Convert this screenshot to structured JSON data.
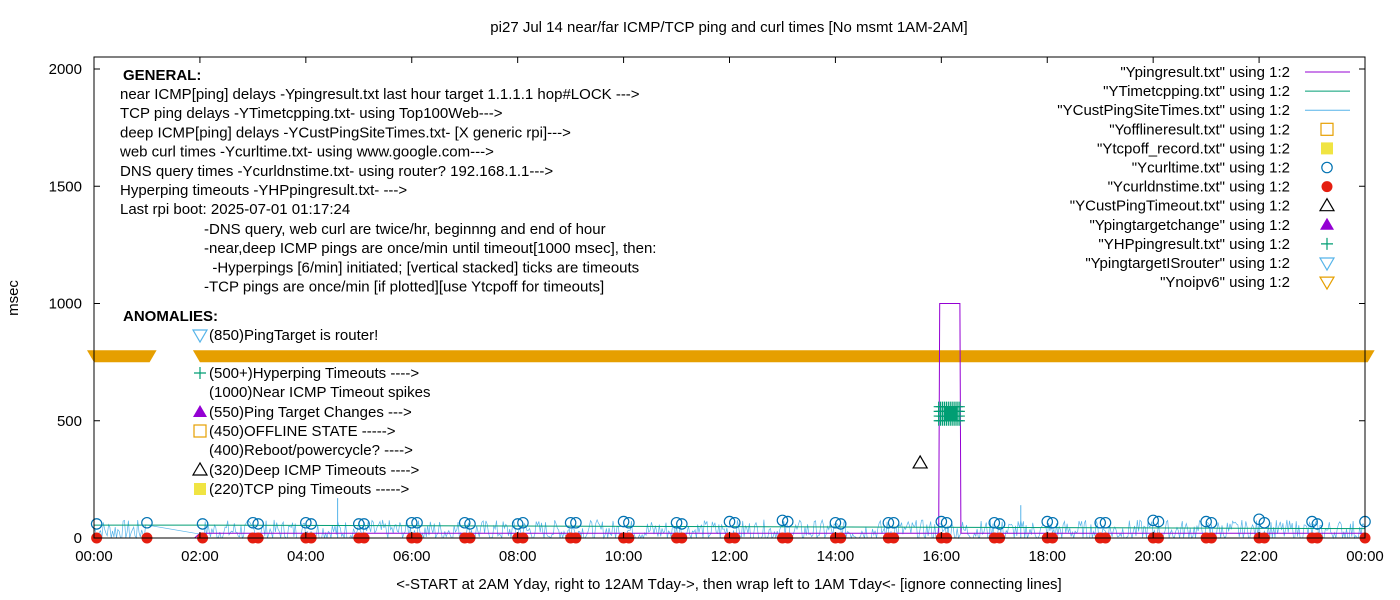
{
  "chart_data": {
    "type": "line",
    "title": "pi27 Jul 14  near/far ICMP/TCP ping and curl times [No msmt 1AM-2AM]",
    "xlabel": "<-START at 2AM Yday, right to 12AM Tday->, then wrap left to 1AM Tday<- [ignore connecting lines]",
    "ylabel": "msec",
    "xlim": [
      0,
      24
    ],
    "ylim": [
      0,
      2000
    ],
    "x_ticks": [
      "00:00",
      "02:00",
      "04:00",
      "06:00",
      "08:00",
      "10:00",
      "12:00",
      "14:00",
      "16:00",
      "18:00",
      "20:00",
      "22:00",
      "00:00"
    ],
    "y_ticks": [
      0,
      500,
      1000,
      1500,
      2000
    ],
    "grid": false,
    "legend_placement": "top-right",
    "legend": [
      {
        "label": "\"Ypingresult.txt\" using 1:2",
        "kind": "line",
        "color": "#9400d3"
      },
      {
        "label": "\"YTimetcpping.txt\" using 1:2",
        "kind": "line",
        "color": "#009e73"
      },
      {
        "label": "\"YCustPingSiteTimes.txt\" using 1:2",
        "kind": "line",
        "color": "#56b4e9"
      },
      {
        "label": "\"Yofflineresult.txt\" using 1:2",
        "kind": "open-square",
        "color": "#e69f00"
      },
      {
        "label": "\"Ytcpoff_record.txt\" using 1:2",
        "kind": "filled-square",
        "color": "#f0e442"
      },
      {
        "label": "\"Ycurltime.txt\" using 1:2",
        "kind": "open-circle",
        "color": "#0072b2"
      },
      {
        "label": "\"Ycurldnstime.txt\" using 1:2",
        "kind": "filled-circle",
        "color": "#e51e10"
      },
      {
        "label": "\"YCustPingTimeout.txt\" using 1:2",
        "kind": "open-triangle",
        "color": "#000000"
      },
      {
        "label": "\"Ypingtargetchange\" using 1:2",
        "kind": "filled-triangle",
        "color": "#9400d3"
      },
      {
        "label": "\"YHPpingresult.txt\" using 1:2",
        "kind": "plus",
        "color": "#009e73"
      },
      {
        "label": "\"YpingtargetISrouter\" using 1:2",
        "kind": "open-down-triangle",
        "color": "#56b4e9"
      },
      {
        "label": "\"Ynoipv6\" using 1:2",
        "kind": "open-down-triangle",
        "color": "#e69f00"
      }
    ],
    "annotations": {
      "general_header": "GENERAL:",
      "general_lines": [
        "near ICMP[ping] delays -Ypingresult.txt last hour target 1.1.1.1 hop#LOCK --->",
        "TCP ping delays -YTimetcpping.txt- using Top100Web--->",
        "deep ICMP[ping] delays -YCustPingSiteTimes.txt- [X generic rpi]--->",
        "web curl times -Ycurltime.txt- using www.google.com--->",
        "DNS query times -Ycurldnstime.txt- using router? 192.168.1.1--->",
        "Hyperping timeouts -YHPpingresult.txt- --->",
        "Last rpi boot: 2025-07-01 01:17:24"
      ],
      "general_sub_lines": [
        "-DNS query, web curl are twice/hr, beginnng and end of hour",
        "-near,deep ICMP pings are once/min until timeout[1000 msec], then:",
        "  -Hyperpings [6/min] initiated; [vertical stacked] ticks are timeouts",
        "-TCP pings are once/min [if plotted][use Ytcpoff for timeouts]"
      ],
      "anomalies_header": "ANOMALIES:",
      "anomalies": [
        {
          "label": "(850)PingTarget is router!",
          "marker": "open-down-triangle",
          "color": "#56b4e9"
        },
        {
          "label": "(500+)Hyperping Timeouts ---->",
          "marker": "plus",
          "color": "#009e73"
        },
        {
          "label": "(1000)Near ICMP Timeout spikes",
          "marker": "none",
          "color": "#000000"
        },
        {
          "label": "(550)Ping Target Changes --->",
          "marker": "filled-triangle",
          "color": "#9400d3"
        },
        {
          "label": "(450)OFFLINE STATE ----->",
          "marker": "open-square",
          "color": "#e69f00"
        },
        {
          "label": "(400)Reboot/powercycle? ---->",
          "marker": "none",
          "color": "#000000"
        },
        {
          "label": "(320)Deep ICMP Timeouts ---->",
          "marker": "open-triangle",
          "color": "#000000"
        },
        {
          "label": "(220)TCP ping Timeouts ----->",
          "marker": "filled-square",
          "color": "#f0e442"
        }
      ]
    },
    "series": [
      {
        "name": "\"Ynoipv6\" using 1:2",
        "kind": "marker-band",
        "y": 775,
        "segments": [
          [
            0,
            1.05
          ],
          [
            2.0,
            24.05
          ]
        ]
      },
      {
        "name": "\"Ypingresult.txt\" using 1:2",
        "kind": "line",
        "points": [
          [
            0,
            0
          ],
          [
            1.9,
            0
          ],
          [
            2.0,
            20
          ],
          [
            15.95,
            20
          ],
          [
            15.97,
            1000
          ],
          [
            16.35,
            1000
          ],
          [
            16.37,
            20
          ],
          [
            24,
            20
          ]
        ]
      },
      {
        "name": "\"YHPpingresult.txt\" using 1:2",
        "kind": "plus-cluster",
        "x_range": [
          15.95,
          16.35
        ],
        "y_range": [
          500,
          560
        ]
      },
      {
        "name": "\"YCustPingTimeout.txt\" using 1:2",
        "kind": "points",
        "points": [
          [
            15.6,
            320
          ]
        ]
      },
      {
        "name": "\"YCustPingSiteTimes.txt\" using 1:2",
        "kind": "noise",
        "baseline": 30,
        "amplitude": 60,
        "spikes": [
          [
            4.6,
            170
          ],
          [
            17.5,
            140
          ]
        ]
      },
      {
        "name": "\"YTimetcpping.txt\" using 1:2",
        "kind": "line",
        "points": [
          [
            0,
            55
          ],
          [
            2.0,
            55
          ],
          [
            24,
            40
          ]
        ]
      },
      {
        "name": "\"Ycurltime.txt\" using 1:2",
        "kind": "points",
        "points": [
          [
            0.05,
            60
          ],
          [
            1.0,
            65
          ],
          [
            2.05,
            60
          ],
          [
            3.0,
            65
          ],
          [
            3.1,
            60
          ],
          [
            4.0,
            65
          ],
          [
            4.1,
            60
          ],
          [
            5.0,
            60
          ],
          [
            5.1,
            60
          ],
          [
            6.0,
            65
          ],
          [
            6.1,
            65
          ],
          [
            7.0,
            65
          ],
          [
            7.1,
            60
          ],
          [
            8.0,
            60
          ],
          [
            8.1,
            65
          ],
          [
            9.0,
            65
          ],
          [
            9.1,
            65
          ],
          [
            10.0,
            70
          ],
          [
            10.1,
            65
          ],
          [
            11.0,
            65
          ],
          [
            11.1,
            60
          ],
          [
            12.0,
            70
          ],
          [
            12.1,
            65
          ],
          [
            13.0,
            75
          ],
          [
            13.1,
            70
          ],
          [
            14.0,
            65
          ],
          [
            14.1,
            60
          ],
          [
            15.0,
            65
          ],
          [
            15.1,
            65
          ],
          [
            16.0,
            70
          ],
          [
            16.1,
            65
          ],
          [
            17.0,
            65
          ],
          [
            17.1,
            60
          ],
          [
            18.0,
            70
          ],
          [
            18.1,
            65
          ],
          [
            19.0,
            65
          ],
          [
            19.1,
            65
          ],
          [
            20.0,
            75
          ],
          [
            20.1,
            70
          ],
          [
            21.0,
            70
          ],
          [
            21.1,
            65
          ],
          [
            22.0,
            80
          ],
          [
            22.1,
            65
          ],
          [
            23.0,
            70
          ],
          [
            23.1,
            60
          ],
          [
            24.0,
            70
          ]
        ]
      },
      {
        "name": "\"Ycurldnstime.txt\" using 1:2",
        "kind": "points",
        "points": [
          [
            0.05,
            0
          ],
          [
            1.0,
            0
          ],
          [
            2.05,
            0
          ],
          [
            3.0,
            0
          ],
          [
            3.1,
            0
          ],
          [
            4.0,
            0
          ],
          [
            4.1,
            0
          ],
          [
            5.0,
            0
          ],
          [
            5.1,
            0
          ],
          [
            6.0,
            0
          ],
          [
            6.1,
            0
          ],
          [
            7.0,
            0
          ],
          [
            7.1,
            0
          ],
          [
            8.0,
            0
          ],
          [
            8.1,
            0
          ],
          [
            9.0,
            0
          ],
          [
            9.1,
            0
          ],
          [
            10.0,
            0
          ],
          [
            10.1,
            0
          ],
          [
            11.0,
            0
          ],
          [
            11.1,
            0
          ],
          [
            12.0,
            0
          ],
          [
            12.1,
            0
          ],
          [
            13.0,
            0
          ],
          [
            13.1,
            0
          ],
          [
            14.0,
            0
          ],
          [
            14.1,
            0
          ],
          [
            15.0,
            0
          ],
          [
            15.1,
            0
          ],
          [
            16.0,
            0
          ],
          [
            16.1,
            0
          ],
          [
            17.0,
            0
          ],
          [
            17.1,
            0
          ],
          [
            18.0,
            0
          ],
          [
            18.1,
            0
          ],
          [
            19.0,
            0
          ],
          [
            19.1,
            0
          ],
          [
            20.0,
            0
          ],
          [
            20.1,
            0
          ],
          [
            21.0,
            0
          ],
          [
            21.1,
            0
          ],
          [
            22.0,
            0
          ],
          [
            22.1,
            0
          ],
          [
            23.0,
            0
          ],
          [
            23.1,
            0
          ],
          [
            24.0,
            0
          ]
        ]
      }
    ]
  }
}
